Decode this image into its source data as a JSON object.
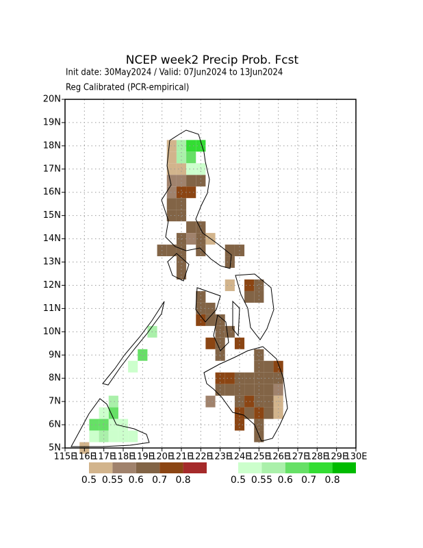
{
  "chart_data": {
    "type": "map",
    "title": "NCEP week2 Precip Prob. Fcst",
    "subtitle": "Init date: 30May2024 / Valid: 07Jun2024 to 13Jun2024",
    "note": "Reg Calibrated (PCR-empirical)",
    "xlim": [
      115,
      130
    ],
    "ylim": [
      5,
      20
    ],
    "xticks": [
      {
        "value": 115,
        "label": "115E"
      },
      {
        "value": 116,
        "label": "116E"
      },
      {
        "value": 117,
        "label": "117E"
      },
      {
        "value": 118,
        "label": "118E"
      },
      {
        "value": 119,
        "label": "119E"
      },
      {
        "value": 120,
        "label": "120E"
      },
      {
        "value": 121,
        "label": "121E"
      },
      {
        "value": 122,
        "label": "122E"
      },
      {
        "value": 123,
        "label": "123E"
      },
      {
        "value": 124,
        "label": "124E"
      },
      {
        "value": 125,
        "label": "125E"
      },
      {
        "value": 126,
        "label": "126E"
      },
      {
        "value": 127,
        "label": "127E"
      },
      {
        "value": 128,
        "label": "128E"
      },
      {
        "value": 129,
        "label": "129E"
      },
      {
        "value": 130,
        "label": "130E"
      }
    ],
    "yticks": [
      {
        "value": 5,
        "label": "5N"
      },
      {
        "value": 6,
        "label": "6N"
      },
      {
        "value": 7,
        "label": "7N"
      },
      {
        "value": 8,
        "label": "8N"
      },
      {
        "value": 9,
        "label": "9N"
      },
      {
        "value": 10,
        "label": "10N"
      },
      {
        "value": 11,
        "label": "11N"
      },
      {
        "value": 12,
        "label": "12N"
      },
      {
        "value": 13,
        "label": "13N"
      },
      {
        "value": 14,
        "label": "14N"
      },
      {
        "value": 15,
        "label": "15N"
      },
      {
        "value": 16,
        "label": "16N"
      },
      {
        "value": 17,
        "label": "17N"
      },
      {
        "value": 18,
        "label": "18N"
      },
      {
        "value": 19,
        "label": "19N"
      },
      {
        "value": 20,
        "label": "20N"
      }
    ],
    "grid": true,
    "cell_size": 0.5,
    "levels": [
      0.5,
      0.55,
      0.6,
      0.7,
      0.8
    ],
    "series": [
      {
        "colors": [
          "#d2b48c",
          "#a0826c",
          "#826446",
          "#8b4513",
          "#a52a2a"
        ],
        "cells": [
          [
            116,
            5,
            0.52
          ],
          [
            120.5,
            18,
            0.52
          ],
          [
            120.5,
            17.5,
            0.52
          ],
          [
            120.5,
            17,
            0.52
          ],
          [
            121,
            17,
            0.52
          ],
          [
            120.5,
            16.5,
            0.57
          ],
          [
            121,
            16.5,
            0.57
          ],
          [
            121.5,
            16.5,
            0.62
          ],
          [
            122,
            16.5,
            0.62
          ],
          [
            120.5,
            16,
            0.57
          ],
          [
            121,
            16,
            0.75
          ],
          [
            121.5,
            16,
            0.72
          ],
          [
            120.5,
            15.5,
            0.62
          ],
          [
            121,
            15.5,
            0.62
          ],
          [
            120.5,
            15,
            0.65
          ],
          [
            121,
            15,
            0.65
          ],
          [
            121.5,
            14.5,
            0.62
          ],
          [
            122,
            14.5,
            0.62
          ],
          [
            121,
            14,
            0.62
          ],
          [
            121.5,
            14,
            0.57
          ],
          [
            122,
            14,
            0.62
          ],
          [
            122.5,
            14,
            0.52
          ],
          [
            120,
            13.5,
            0.62
          ],
          [
            120.5,
            13.5,
            0.62
          ],
          [
            121,
            13.5,
            0.62
          ],
          [
            122,
            13.5,
            0.65
          ],
          [
            121,
            13,
            0.62
          ],
          [
            121,
            12.5,
            0.62
          ],
          [
            123.5,
            13.5,
            0.62
          ],
          [
            124,
            13.5,
            0.62
          ],
          [
            123.5,
            13,
            0.62
          ],
          [
            123.5,
            12,
            0.52
          ],
          [
            124.5,
            12,
            0.72
          ],
          [
            125,
            12,
            0.62
          ],
          [
            124.5,
            11.5,
            0.62
          ],
          [
            125,
            11.5,
            0.62
          ],
          [
            122,
            11.5,
            0.62
          ],
          [
            122,
            11,
            0.62
          ],
          [
            122.5,
            11,
            0.62
          ],
          [
            122,
            10.5,
            0.72
          ],
          [
            122.5,
            10.5,
            0.62
          ],
          [
            123,
            10.5,
            0.62
          ],
          [
            123,
            10,
            0.62
          ],
          [
            123.5,
            10,
            0.62
          ],
          [
            122.5,
            9.5,
            0.72
          ],
          [
            123,
            9.5,
            0.62
          ],
          [
            124,
            9.5,
            0.72
          ],
          [
            123,
            9,
            0.62
          ],
          [
            125,
            9,
            0.62
          ],
          [
            125,
            8.5,
            0.62
          ],
          [
            125.5,
            8.5,
            0.62
          ],
          [
            126,
            8.5,
            0.72
          ],
          [
            123,
            8,
            0.72
          ],
          [
            123.5,
            8,
            0.72
          ],
          [
            124,
            8,
            0.62
          ],
          [
            124.5,
            8,
            0.62
          ],
          [
            125,
            8,
            0.62
          ],
          [
            125.5,
            8,
            0.62
          ],
          [
            126,
            8,
            0.62
          ],
          [
            123,
            7.5,
            0.62
          ],
          [
            123.5,
            7.5,
            0.62
          ],
          [
            124,
            7.5,
            0.62
          ],
          [
            124.5,
            7.5,
            0.62
          ],
          [
            125,
            7.5,
            0.62
          ],
          [
            125.5,
            7.5,
            0.62
          ],
          [
            126,
            7.5,
            0.57
          ],
          [
            122.5,
            7,
            0.57
          ],
          [
            124,
            7,
            0.62
          ],
          [
            124.5,
            7,
            0.72
          ],
          [
            125,
            7,
            0.62
          ],
          [
            125.5,
            7,
            0.62
          ],
          [
            126,
            7,
            0.52
          ],
          [
            124,
            6.5,
            0.72
          ],
          [
            124.5,
            6.5,
            0.62
          ],
          [
            125,
            6.5,
            0.72
          ],
          [
            125.5,
            6.5,
            0.62
          ],
          [
            126,
            6.5,
            0.52
          ],
          [
            124,
            6,
            0.72
          ],
          [
            125,
            6,
            0.62
          ],
          [
            125,
            5.5,
            0.62
          ]
        ]
      },
      {
        "colors": [
          "#ccffcc",
          "#aaf0aa",
          "#66e066",
          "#33dd33",
          "#00bb00"
        ],
        "cells": [
          [
            121,
            18,
            0.57
          ],
          [
            121.5,
            18,
            0.72
          ],
          [
            122,
            18,
            0.72
          ],
          [
            121,
            17.5,
            0.57
          ],
          [
            121.5,
            17.5,
            0.65
          ],
          [
            121.5,
            17,
            0.52
          ],
          [
            122,
            17,
            0.52
          ],
          [
            119.5,
            10,
            0.57
          ],
          [
            119,
            9,
            0.62
          ],
          [
            118.5,
            8.5,
            0.52
          ],
          [
            117.5,
            7,
            0.57
          ],
          [
            117.5,
            6.5,
            0.62
          ],
          [
            117,
            6.5,
            0.52
          ],
          [
            117,
            6,
            0.62
          ],
          [
            116.5,
            6,
            0.62
          ],
          [
            117.5,
            6,
            0.52
          ],
          [
            118,
            6,
            0.52
          ],
          [
            116.5,
            5.5,
            0.52
          ],
          [
            117,
            5.5,
            0.57
          ],
          [
            117.5,
            5.5,
            0.52
          ],
          [
            118,
            5.5,
            0.52
          ],
          [
            118.5,
            5.5,
            0.52
          ]
        ]
      }
    ]
  }
}
